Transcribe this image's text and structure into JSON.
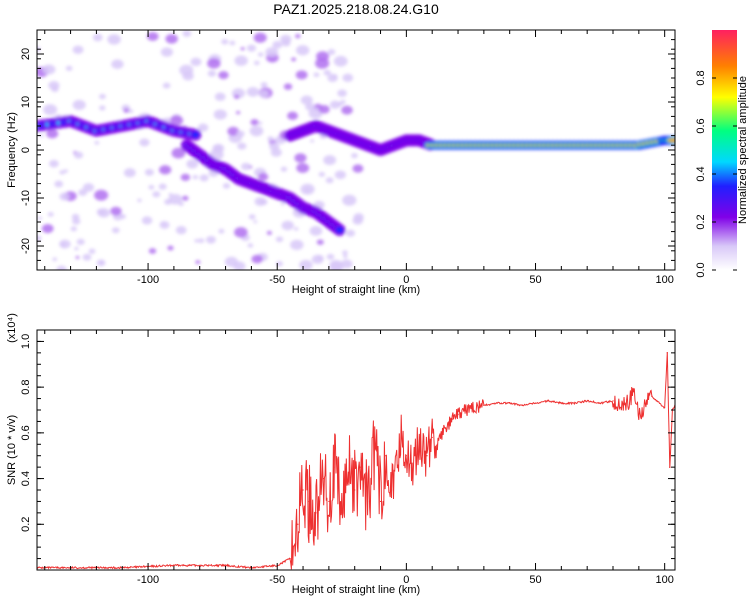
{
  "page_title": "PAZ1.2025.218.08.24.G10",
  "colors": {
    "snr_line": "#ee3030",
    "frame": "#000000",
    "colormap": [
      "#ffffff",
      "#d8c8f8",
      "#b070f0",
      "#8000e8",
      "#2020ff",
      "#00d8ff",
      "#00ff80",
      "#ffff00",
      "#ff8000",
      "#ff2060"
    ]
  },
  "chart_data": [
    {
      "type": "heatmap",
      "title": "PAZ1.2025.218.08.24.G10",
      "xlabel": "Height of straight line (km)",
      "ylabel": "Frequency (Hz)",
      "xlim": [
        -143,
        104
      ],
      "ylim": [
        -25,
        25
      ],
      "x_ticks": [
        -100,
        -50,
        0,
        50,
        100
      ],
      "y_ticks": [
        -20,
        -10,
        0,
        10,
        20
      ],
      "colorbar": {
        "label": "Normalized spectral amplitude",
        "range": [
          0,
          1
        ],
        "ticks": [
          0.0,
          0.2,
          0.4,
          0.6,
          0.8
        ]
      },
      "features": [
        {
          "x": [
            -143,
            -130,
            -120,
            -110,
            -100,
            -90,
            -80
          ],
          "y": [
            5,
            6,
            4,
            5,
            6,
            4,
            3
          ]
        },
        {
          "x": [
            -85,
            -80,
            -75,
            -70,
            -65,
            -60,
            -55,
            -50,
            -45,
            -40,
            -35,
            -30,
            -25
          ],
          "y": [
            1,
            -1,
            -3,
            -4,
            -6,
            -7,
            -8,
            -9,
            -10,
            -12,
            -13,
            -15,
            -17
          ]
        },
        {
          "x": [
            -45,
            -40,
            -35,
            -30,
            -25,
            -20,
            -15,
            -10,
            -5,
            0,
            5,
            10
          ],
          "y": [
            3,
            4,
            5,
            4,
            3,
            2,
            1,
            0,
            1,
            2,
            2,
            1
          ]
        },
        {
          "x": [
            10,
            20,
            30,
            40,
            50,
            60,
            70,
            80,
            90,
            100,
            104
          ],
          "y": [
            1,
            1,
            1,
            1,
            1,
            1,
            1,
            1,
            1,
            2,
            2
          ]
        }
      ]
    },
    {
      "type": "line",
      "xlabel": "Height of straight line (km)",
      "ylabel": "SNR (10 * v/v)",
      "y_multiplier": "(x10⁴)",
      "xlim": [
        -143,
        104
      ],
      "ylim": [
        0,
        1.05
      ],
      "x_ticks": [
        -100,
        -50,
        0,
        50,
        100
      ],
      "y_ticks": [
        0.2,
        0.4,
        0.6,
        0.8,
        1.0
      ],
      "series": [
        {
          "x": [
            -143,
            -130,
            -120,
            -110,
            -100,
            -90,
            -80,
            -70,
            -60,
            -50,
            -45,
            -42,
            -40,
            -38,
            -35,
            -32,
            -30,
            -28,
            -25,
            -22,
            -20,
            -18,
            -15,
            -12,
            -10,
            -8,
            -5,
            -2,
            0,
            2,
            5,
            8,
            10,
            12,
            15,
            18,
            20,
            25,
            30,
            35,
            40,
            45,
            50,
            55,
            60,
            65,
            70,
            75,
            80,
            85,
            88,
            90,
            95,
            100,
            101,
            102,
            103,
            104
          ],
          "y": [
            0.01,
            0.01,
            0.01,
            0.01,
            0.015,
            0.02,
            0.02,
            0.02,
            0.01,
            0.02,
            0.05,
            0.2,
            0.35,
            0.3,
            0.25,
            0.4,
            0.3,
            0.45,
            0.25,
            0.5,
            0.35,
            0.45,
            0.3,
            0.55,
            0.3,
            0.5,
            0.35,
            0.6,
            0.5,
            0.45,
            0.55,
            0.5,
            0.58,
            0.55,
            0.62,
            0.66,
            0.68,
            0.71,
            0.72,
            0.73,
            0.73,
            0.72,
            0.73,
            0.74,
            0.73,
            0.73,
            0.74,
            0.73,
            0.74,
            0.72,
            0.78,
            0.68,
            0.76,
            0.71,
            0.95,
            0.45,
            0.7,
            0.72
          ]
        }
      ]
    }
  ]
}
